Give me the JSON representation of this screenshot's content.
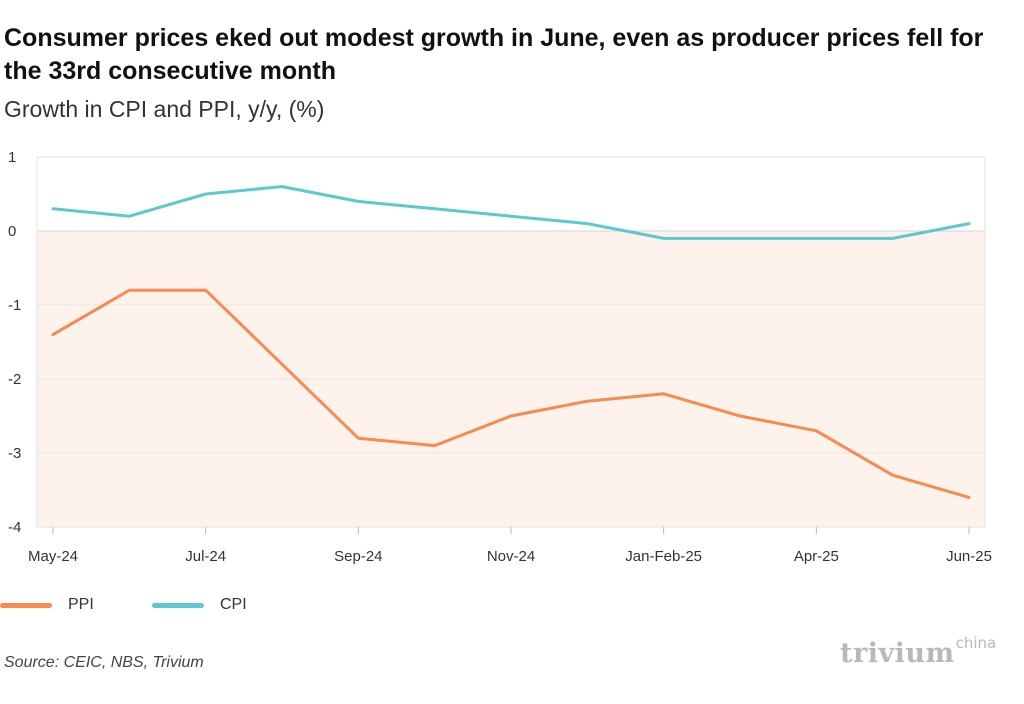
{
  "title": "Consumer prices eked out modest growth in June, even as producer prices fell for the 33rd consecutive month",
  "subtitle": "Growth in CPI and PPI, y/y, (%)",
  "source": "Source: CEIC, NBS, Trivium",
  "logo": {
    "main": "trivium",
    "sup": "china"
  },
  "colors": {
    "ppi": "#f98a4f",
    "cpi": "#5ec8cf",
    "negative_fill": "#fef3ec",
    "grid": "#e6e6e6",
    "zero_line": "#d5d5d5"
  },
  "chart_data": {
    "type": "line",
    "x": [
      "May-24",
      "Jun-24",
      "Jul-24",
      "Aug-24",
      "Sep-24",
      "Oct-24",
      "Nov-24",
      "Dec-24",
      "Jan-Feb-25",
      "Mar-25",
      "Apr-25",
      "May-25",
      "Jun-25"
    ],
    "x_tick_labels": [
      "May-24",
      "Jul-24",
      "Sep-24",
      "Nov-24",
      "Jan-Feb-25",
      "Apr-25",
      "Jun-25"
    ],
    "ylim": [
      -4,
      1
    ],
    "y_ticks": [
      1,
      0,
      -1,
      -2,
      -3,
      -4
    ],
    "grid": true,
    "legend_placement": "bottom-left",
    "series": [
      {
        "name": "PPI",
        "values": [
          -1.4,
          -0.8,
          -0.8,
          -1.8,
          -2.8,
          -2.9,
          -2.5,
          -2.3,
          -2.2,
          -2.5,
          -2.7,
          -3.3,
          -3.6
        ]
      },
      {
        "name": "CPI",
        "values": [
          0.3,
          0.2,
          0.5,
          0.6,
          0.4,
          0.3,
          0.2,
          0.1,
          -0.1,
          -0.1,
          -0.1,
          -0.1,
          0.1
        ]
      }
    ]
  }
}
